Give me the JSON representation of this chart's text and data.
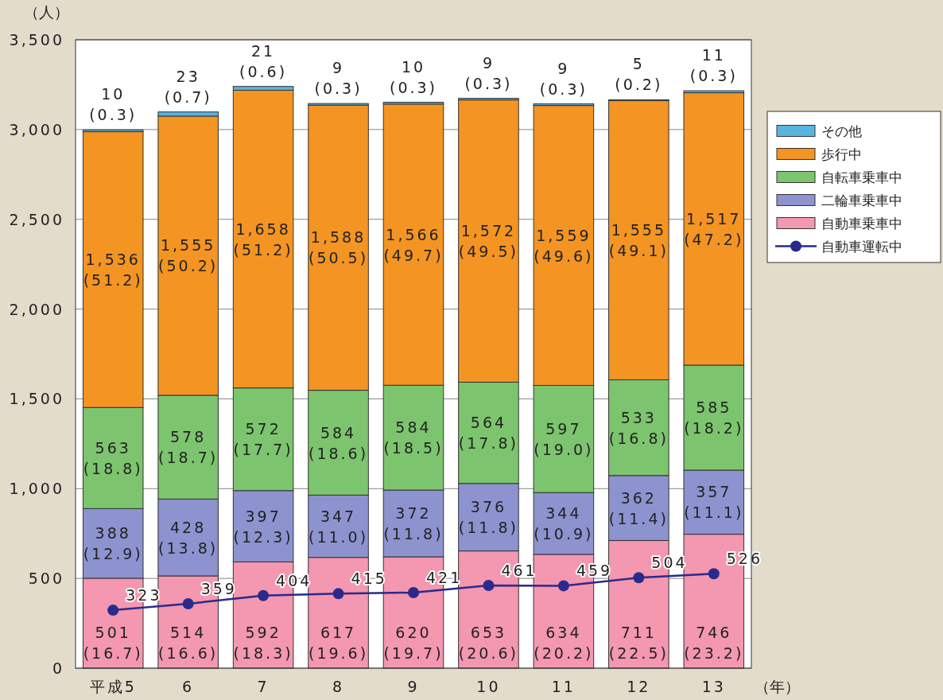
{
  "chart_data": {
    "type": "bar",
    "stacked": true,
    "ylabel": "（人）",
    "xlabel": "（年）",
    "categories": [
      "平成5",
      "6",
      "7",
      "8",
      "9",
      "10",
      "11",
      "12",
      "13"
    ],
    "ylim": [
      0,
      3500
    ],
    "yticks": [
      0,
      500,
      {
        "value": 1000,
        "label": "1,000"
      },
      {
        "value": 1500,
        "label": "1,500"
      },
      {
        "value": 2000,
        "label": "2,000"
      },
      {
        "value": 2500,
        "label": "2,500"
      },
      {
        "value": 3000,
        "label": "3,000"
      },
      {
        "value": 3500,
        "label": "3,500"
      }
    ],
    "grid": "y",
    "legend": "right",
    "marker": "circle",
    "series": [
      {
        "name": "自動車乗車中",
        "type": "bar",
        "color": "#f497b0",
        "values": [
          501,
          514,
          592,
          617,
          620,
          653,
          634,
          711,
          746
        ],
        "value_labels": [
          "501\n(16.7)",
          "514\n(16.6)",
          "592\n(18.3)",
          "617\n(19.6)",
          "620\n(19.7)",
          "653\n(20.6)",
          "634\n(20.2)",
          "711\n(22.5)",
          "746\n(23.2)"
        ]
      },
      {
        "name": "二輪車乗車中",
        "type": "bar",
        "color": "#8c93cf",
        "values": [
          388,
          428,
          397,
          347,
          372,
          376,
          344,
          362,
          357
        ],
        "value_labels": [
          "388\n(12.9)",
          "428\n(13.8)",
          "397\n(12.3)",
          "347\n(11.0)",
          "372\n(11.8)",
          "376\n(11.8)",
          "344\n(10.9)",
          "362\n(11.4)",
          "357\n(11.1)"
        ]
      },
      {
        "name": "自転車乗車中",
        "type": "bar",
        "color": "#7dc46e",
        "values": [
          563,
          578,
          572,
          584,
          584,
          564,
          597,
          533,
          585
        ],
        "value_labels": [
          "563\n(18.8)",
          "578\n(18.7)",
          "572\n(17.7)",
          "584\n(18.6)",
          "584\n(18.5)",
          "564\n(17.8)",
          "597\n(19.0)",
          "533\n(16.8)",
          "585\n(18.2)"
        ]
      },
      {
        "name": "歩行中",
        "type": "bar",
        "color": "#f39423",
        "values": [
          1536,
          1555,
          1658,
          1588,
          1566,
          1572,
          1559,
          1555,
          1517
        ],
        "value_labels": [
          "1,536\n(51.2)",
          "1,555\n(50.2)",
          "1,658\n(51.2)",
          "1,588\n(50.5)",
          "1,566\n(49.7)",
          "1,572\n(49.5)",
          "1,559\n(49.6)",
          "1,555\n(49.1)",
          "1,517\n(47.2)"
        ]
      },
      {
        "name": "その他",
        "type": "bar",
        "color": "#5ab4e0",
        "values": [
          10,
          23,
          21,
          9,
          10,
          9,
          9,
          5,
          11
        ],
        "value_labels": [
          "10\n(0.3)",
          "23\n(0.7)",
          "21\n(0.6)",
          "9\n(0.3)",
          "10\n(0.3)",
          "9\n(0.3)",
          "9\n(0.3)",
          "5\n(0.2)",
          "11\n(0.3)"
        ]
      },
      {
        "name": "自動車運転中",
        "type": "line",
        "color": "#2a2a8c",
        "values": [
          323,
          359,
          404,
          415,
          421,
          461,
          459,
          504,
          526
        ],
        "value_labels": [
          "323",
          "359",
          "404",
          "415",
          "421",
          "461",
          "459",
          "504",
          "526"
        ]
      }
    ]
  }
}
